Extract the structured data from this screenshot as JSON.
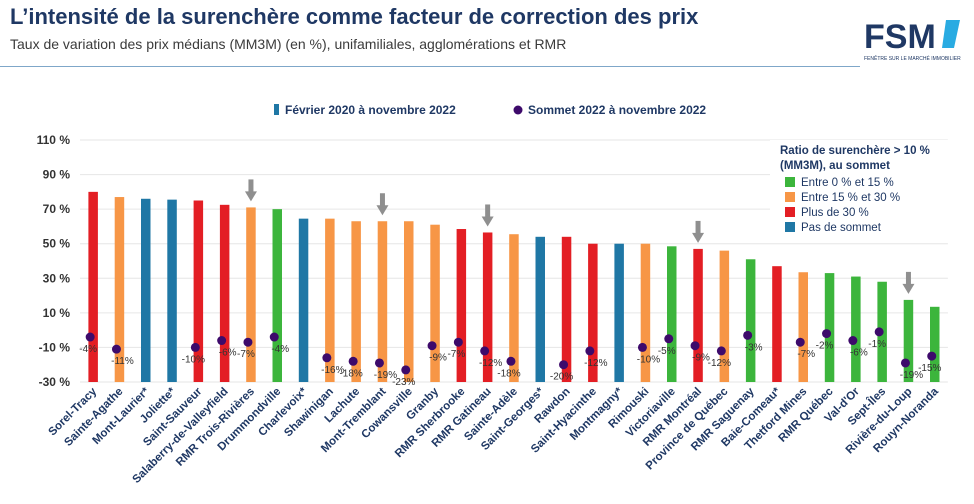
{
  "header": {
    "title": "L’intensité de la surenchère comme facteur de correction des prix",
    "subtitle": "Taux de variation des prix médians (MM3M) (en %), unifamiliales, agglomérations et RMR",
    "logo_text": "FSM",
    "logo_tagline": "FENÊTRE SUR LE MARCHÉ IMMOBILIER"
  },
  "colors": {
    "green": "#3cb53c",
    "orange": "#f79646",
    "red": "#e31e24",
    "blue": "#1f77a5",
    "dot": "#3d0a6b",
    "arrow": "#8f8f8f"
  },
  "chart_data": {
    "type": "bar",
    "ylim": [
      -30,
      110
    ],
    "yticks": [
      "110 %",
      "90 %",
      "70 %",
      "50 %",
      "30 %",
      "10 %",
      "-10 %",
      "-30 %"
    ],
    "legend": {
      "bar_series": "Février 2020 à novembre 2022",
      "dot_series": "Sommet 2022 à novembre 2022"
    },
    "ratio_box": {
      "title_line1": "Ratio de surenchère > 10 %",
      "title_line2": "(MM3M), au sommet",
      "items": [
        {
          "label": "Entre 0 % et 15 %",
          "key": "green"
        },
        {
          "label": "Entre 15 % et 30 %",
          "key": "orange"
        },
        {
          "label": "Plus de 30 %",
          "key": "red"
        },
        {
          "label": "Pas de sommet",
          "key": "blue"
        }
      ]
    },
    "categories": [
      "Sorel-Tracy",
      "Sainte-Agathe",
      "Mont-Laurier*",
      "Joliette*",
      "Saint-Sauveur",
      "Salaberry-de-Valleyfield",
      "RMR Trois-Rivières",
      "Drummondville",
      "Charlevoix*",
      "Shawinigan",
      "Lachute",
      "Mont-Tremblant",
      "Cowansville",
      "Granby",
      "RMR Sherbrooke",
      "RMR Gatineau",
      "Sainte-Adèle",
      "Saint-Georges*",
      "Rawdon",
      "Saint-Hyacinthe",
      "Montmagny*",
      "Rimouski",
      "Victoriaville",
      "RMR Montréal",
      "Province de Québec",
      "RMR Saguenay",
      "Baie-Comeau*",
      "Thetford Mines",
      "RMR Québec",
      "Val-d'Or",
      "Sept-Îles",
      "Rivière-du-Loup",
      "Rouyn-Noranda"
    ],
    "bar_values": [
      80,
      77,
      76,
      75.5,
      75,
      72.5,
      71,
      70,
      64.5,
      64.5,
      63,
      63,
      63,
      61,
      58.5,
      56.5,
      55.5,
      54,
      54,
      50,
      50,
      50,
      48.5,
      47,
      46,
      41,
      37,
      33.5,
      33,
      31,
      28,
      17.5,
      13.5
    ],
    "bar_colors": [
      "red",
      "orange",
      "blue",
      "blue",
      "red",
      "red",
      "orange",
      "green",
      "blue",
      "orange",
      "orange",
      "orange",
      "orange",
      "orange",
      "red",
      "red",
      "orange",
      "blue",
      "red",
      "red",
      "blue",
      "orange",
      "green",
      "red",
      "orange",
      "green",
      "red",
      "orange",
      "green",
      "green",
      "green",
      "green",
      "green"
    ],
    "dot_values": [
      -4,
      -11,
      null,
      null,
      -10,
      -6,
      -7,
      -4,
      null,
      -16,
      -18,
      -19,
      -23,
      -9,
      -7,
      -12,
      -18,
      null,
      -20,
      -12,
      null,
      -10,
      -5,
      -9,
      -12,
      -3,
      null,
      -7,
      -2,
      -6,
      -1,
      -19,
      -15
    ],
    "dot_labels": [
      "-4%",
      "-11%",
      "",
      "",
      "-10%",
      "-6%",
      "-7%",
      "-4%",
      "",
      "-16%",
      "-18%",
      "-19%",
      "-23%",
      "-9%",
      "-7%",
      "-12%",
      "-18%",
      "",
      "-20%",
      "-12%",
      "",
      "-10%",
      "-5%",
      "-9%",
      "-12%",
      "-3%",
      "",
      "-7%",
      "-2%",
      "-6%",
      "-1%",
      "-19%",
      "-15%"
    ],
    "arrow_indices": [
      6,
      11,
      15,
      23,
      31
    ]
  }
}
